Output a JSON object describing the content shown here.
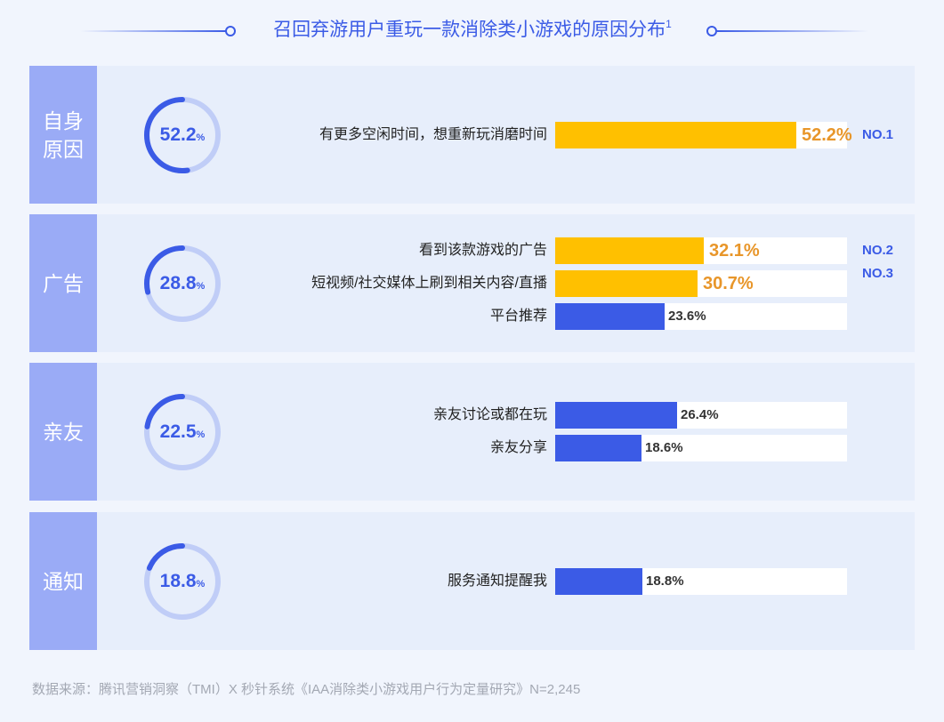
{
  "header": {
    "title": "召回弃游用户重玩一款消除类小游戏的原因分布",
    "title_superscript": "1"
  },
  "colors": {
    "accent_blue": "#3b5be6",
    "highlight_yellow": "#ffc000",
    "highlight_value_orange": "#e8962a",
    "label_column": "#9aabf6",
    "ring_track": "#c0cdf7",
    "panel_bg": "#e7eefb",
    "page_bg": "#f1f5fd"
  },
  "sections": [
    {
      "label": "自身\n原因",
      "total": "52.2",
      "total_pct_sign": "%",
      "items": [
        {
          "label": "有更多空闲时间，想重新玩消磨时间",
          "value": "52.2%",
          "highlight": true,
          "rank": "NO.1"
        }
      ]
    },
    {
      "label": "广告",
      "total": "28.8",
      "total_pct_sign": "%",
      "items": [
        {
          "label": "看到该款游戏的广告",
          "value": "32.1%",
          "highlight": true,
          "rank": "NO.2"
        },
        {
          "label": "短视频/社交媒体上刷到相关内容/直播",
          "value": "30.7%",
          "highlight": true,
          "rank": "NO.3"
        },
        {
          "label": "平台推荐",
          "value": "23.6%",
          "highlight": false,
          "rank": ""
        }
      ]
    },
    {
      "label": "亲友",
      "total": "22.5",
      "total_pct_sign": "%",
      "items": [
        {
          "label": "亲友讨论或都在玩",
          "value": "26.4%",
          "highlight": false,
          "rank": ""
        },
        {
          "label": "亲友分享",
          "value": "18.6%",
          "highlight": false,
          "rank": ""
        }
      ]
    },
    {
      "label": "通知",
      "total": "18.8",
      "total_pct_sign": "%",
      "items": [
        {
          "label": "服务通知提醒我",
          "value": "18.8%",
          "highlight": false,
          "rank": ""
        }
      ]
    }
  ],
  "footer": {
    "source": "数据来源：腾讯营销洞察（TMI）X 秒针系统《IAA消除类小游戏用户行为定量研究》N=2,245"
  },
  "chart_data": {
    "type": "bar",
    "title": "召回弃游用户重玩一款消除类小游戏的原因分布",
    "orientation": "horizontal",
    "groups": [
      {
        "name": "自身原因",
        "total": 52.2
      },
      {
        "name": "广告",
        "total": 28.8
      },
      {
        "name": "亲友",
        "total": 22.5
      },
      {
        "name": "通知",
        "total": 18.8
      }
    ],
    "categories": [
      "有更多空闲时间，想重新玩消磨时间",
      "看到该款游戏的广告",
      "短视频/社交媒体上刷到相关内容/直播",
      "平台推荐",
      "亲友讨论或都在玩",
      "亲友分享",
      "服务通知提醒我"
    ],
    "category_groups": [
      "自身原因",
      "广告",
      "广告",
      "广告",
      "亲友",
      "亲友",
      "通知"
    ],
    "values": [
      52.2,
      32.1,
      30.7,
      23.6,
      26.4,
      18.6,
      18.8
    ],
    "unit": "%",
    "rankings": {
      "NO.1": "有更多空闲时间，想重新玩消磨时间",
      "NO.2": "看到该款游戏的广告",
      "NO.3": "短视频/社交媒体上刷到相关内容/直播"
    },
    "xlim": [
      0,
      100
    ],
    "grid": false,
    "legend": "none",
    "source": "数据来源：腾讯营销洞察（TMI）X 秒针系统《IAA消除类小游戏用户行为定量研究》N=2,245"
  }
}
